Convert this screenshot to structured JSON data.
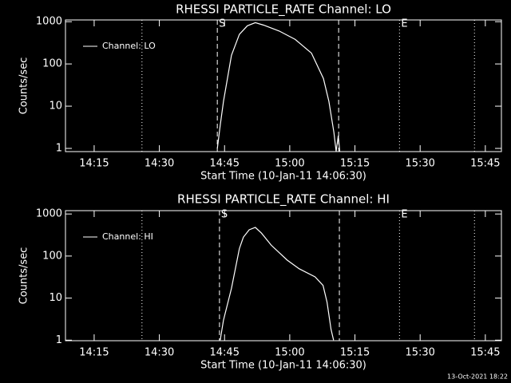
{
  "chart_data": [
    {
      "type": "line",
      "title": "RHESSI PARTICLE_RATE Channel: LO",
      "xlabel": "Start Time (10-Jan-11 14:06:30)",
      "ylabel": "Counts/sec",
      "log_y": true,
      "xlim": [
        "14:08:24",
        "15:48:42"
      ],
      "ylim": [
        0.84,
        1100
      ],
      "yticks": [
        1,
        10,
        100,
        1000
      ],
      "xticks": [
        "14:15",
        "14:30",
        "14:45",
        "15:00",
        "15:15",
        "15:30",
        "15:45"
      ],
      "legend": "upper left",
      "x": [
        "14:43:20",
        "14:44:00",
        "14:44:45",
        "14:46:35",
        "14:48:25",
        "14:50:15",
        "14:52:05",
        "14:54:00",
        "14:57:35",
        "15:01:15",
        "15:05:00",
        "15:07:45",
        "15:09:00",
        "15:10:10",
        "15:10:40",
        "15:11:10",
        "15:11:30"
      ],
      "series": [
        {
          "name": "Channel: LO",
          "color": "#ffffff",
          "values": [
            1,
            3.5,
            13,
            160,
            500,
            800,
            950,
            830,
            600,
            380,
            180,
            45,
            13,
            2.4,
            0.85,
            2,
            0.85
          ]
        }
      ],
      "vlines": [
        {
          "x": "14:26:00",
          "style": "dotted"
        },
        {
          "x": "14:43:20",
          "style": "dashed",
          "label": "S"
        },
        {
          "x": "15:11:15",
          "style": "dashed"
        },
        {
          "x": "15:25:15",
          "style": "dotted",
          "label": "E"
        },
        {
          "x": "15:42:30",
          "style": "dotted"
        }
      ]
    },
    {
      "type": "line",
      "title": "RHESSI PARTICLE_RATE Channel: HI",
      "xlabel": "Start Time (10-Jan-11 14:06:30)",
      "ylabel": "Counts/sec",
      "log_y": true,
      "xlim": [
        "14:08:24",
        "15:48:42"
      ],
      "ylim": [
        0.97,
        1200
      ],
      "yticks": [
        1,
        10,
        100,
        1000
      ],
      "xticks": [
        "14:15",
        "14:30",
        "14:45",
        "15:00",
        "15:15",
        "15:30",
        "15:45"
      ],
      "legend": "upper left",
      "x": [
        "14:44:00",
        "14:44:45",
        "14:46:35",
        "14:48:25",
        "14:49:20",
        "14:50:40",
        "14:52:05",
        "14:53:30",
        "14:55:45",
        "14:59:25",
        "15:02:10",
        "15:05:50",
        "15:07:40",
        "15:08:35",
        "15:09:30",
        "15:10:05"
      ],
      "series": [
        {
          "name": "Channel: HI",
          "color": "#ffffff",
          "values": [
            1,
            3,
            17,
            150,
            280,
            420,
            480,
            350,
            180,
            80,
            50,
            32,
            20,
            8,
            1.8,
            1
          ]
        }
      ],
      "vlines": [
        {
          "x": "14:26:00",
          "style": "dotted"
        },
        {
          "x": "14:43:50",
          "style": "dashed",
          "label": "S"
        },
        {
          "x": "15:11:25",
          "style": "dashed"
        },
        {
          "x": "15:25:15",
          "style": "dotted",
          "label": "E"
        },
        {
          "x": "15:42:30",
          "style": "dotted"
        }
      ]
    }
  ],
  "footer": "13-Oct-2021 18:22"
}
